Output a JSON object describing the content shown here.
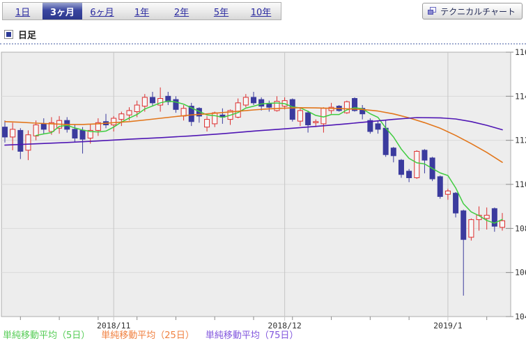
{
  "period_tabs": {
    "items": [
      {
        "name": "tab-1day",
        "label": "1日",
        "selected": false
      },
      {
        "name": "tab-3months",
        "label": "3ヶ月",
        "selected": true
      },
      {
        "name": "tab-6months",
        "label": "6ヶ月",
        "selected": false
      },
      {
        "name": "tab-1year",
        "label": "1年",
        "selected": false
      },
      {
        "name": "tab-2years",
        "label": "2年",
        "selected": false
      },
      {
        "name": "tab-5years",
        "label": "5年",
        "selected": false
      },
      {
        "name": "tab-10years",
        "label": "10年",
        "selected": false
      }
    ]
  },
  "technical_chart_button": {
    "label": "テクニカルチャート"
  },
  "chart_header": {
    "label": "日足"
  },
  "legend": {
    "items": [
      {
        "name": "legend-sma5",
        "label": "単純移動平均（5日）",
        "color": "#55cc55"
      },
      {
        "name": "legend-sma25",
        "label": "単純移動平均（25日）",
        "color": "#f08040"
      },
      {
        "name": "legend-sma75",
        "label": "単純移動平均（75日）",
        "color": "#8055dd"
      }
    ]
  },
  "chart_data": {
    "type": "candlestick",
    "title": "日足",
    "y_axis": {
      "min": 104,
      "max": 116,
      "tick_step": 2,
      "labels": [
        "116",
        "114",
        "112",
        "110",
        "108",
        "106",
        "104"
      ],
      "position": "right"
    },
    "x_axis": {
      "month_labels": [
        {
          "label": "2018/11",
          "index": 14
        },
        {
          "label": "2018/12",
          "index": 36
        },
        {
          "label": "2019/1",
          "index": 57
        }
      ],
      "minor_tick_indices": [
        2,
        7,
        12,
        17,
        22,
        27,
        32,
        37,
        42,
        47,
        52,
        62
      ]
    },
    "grid": true,
    "colors": {
      "up": "#dd2e2e",
      "up_fill": "#f7f7f7",
      "down": "#3b3b9e",
      "background": "#ededed",
      "grid_h": "#d9d9d9",
      "grid_v": "#c6c6c6",
      "border": "#adadad",
      "tick": "#8a8a8a",
      "axis_text": "#333333",
      "ma5": "#3fcc3f",
      "ma25": "#e2761b",
      "ma75": "#4f16b4"
    },
    "candles": [
      [
        112.6,
        112.9,
        111.9,
        112.15
      ],
      [
        112.15,
        112.8,
        111.55,
        112.5
      ],
      [
        112.45,
        112.55,
        111.15,
        111.5
      ],
      [
        111.55,
        112.45,
        111.1,
        112.25
      ],
      [
        112.2,
        112.9,
        112.0,
        112.7
      ],
      [
        112.75,
        113.0,
        112.3,
        112.5
      ],
      [
        112.4,
        113.05,
        112.25,
        112.8
      ],
      [
        112.55,
        113.1,
        112.3,
        112.9
      ],
      [
        112.9,
        113.05,
        112.35,
        112.5
      ],
      [
        112.5,
        112.7,
        111.9,
        112.1
      ],
      [
        112.45,
        112.6,
        111.4,
        112.05
      ],
      [
        112.1,
        112.75,
        111.85,
        112.45
      ],
      [
        112.45,
        113.0,
        112.2,
        112.8
      ],
      [
        112.85,
        113.2,
        112.55,
        112.7
      ],
      [
        112.7,
        113.1,
        112.4,
        113.0
      ],
      [
        112.95,
        113.3,
        112.65,
        113.2
      ],
      [
        113.15,
        113.5,
        112.9,
        113.35
      ],
      [
        113.3,
        113.8,
        113.05,
        113.6
      ],
      [
        113.55,
        114.1,
        113.3,
        113.95
      ],
      [
        113.95,
        114.2,
        113.55,
        113.7
      ],
      [
        113.6,
        114.4,
        113.3,
        113.9
      ],
      [
        114.0,
        114.2,
        113.6,
        113.75
      ],
      [
        113.85,
        114.0,
        113.25,
        113.4
      ],
      [
        113.1,
        113.6,
        112.9,
        113.45
      ],
      [
        113.55,
        113.7,
        112.65,
        112.85
      ],
      [
        113.45,
        113.5,
        112.8,
        113.1
      ],
      [
        112.6,
        113.1,
        112.4,
        112.95
      ],
      [
        112.75,
        113.3,
        112.6,
        113.25
      ],
      [
        113.15,
        113.45,
        112.75,
        113.05
      ],
      [
        112.95,
        113.4,
        112.7,
        113.35
      ],
      [
        113.05,
        113.9,
        113.0,
        113.7
      ],
      [
        113.6,
        114.1,
        113.5,
        113.95
      ],
      [
        113.95,
        114.2,
        113.6,
        113.7
      ],
      [
        113.85,
        113.95,
        113.35,
        113.55
      ],
      [
        113.65,
        113.8,
        113.3,
        113.5
      ],
      [
        113.35,
        114.0,
        113.3,
        113.77
      ],
      [
        113.55,
        113.95,
        113.4,
        113.8
      ],
      [
        113.85,
        113.9,
        112.85,
        112.95
      ],
      [
        112.87,
        113.45,
        112.65,
        113.35
      ],
      [
        113.25,
        113.35,
        112.35,
        112.7
      ],
      [
        112.8,
        112.95,
        112.6,
        112.85
      ],
      [
        112.75,
        113.5,
        112.35,
        113.45
      ],
      [
        113.35,
        113.7,
        113.2,
        113.5
      ],
      [
        113.55,
        113.6,
        113.3,
        113.35
      ],
      [
        113.25,
        113.8,
        113.2,
        113.75
      ],
      [
        113.9,
        113.95,
        113.3,
        113.35
      ],
      [
        113.45,
        113.6,
        112.95,
        113.2
      ],
      [
        112.9,
        113.0,
        112.3,
        112.4
      ],
      [
        112.75,
        112.9,
        112.3,
        112.5
      ],
      [
        112.55,
        112.9,
        111.25,
        111.35
      ],
      [
        111.65,
        111.7,
        111.0,
        111.3
      ],
      [
        111.1,
        111.15,
        110.3,
        110.45
      ],
      [
        110.6,
        110.7,
        110.1,
        110.3
      ],
      [
        110.3,
        111.55,
        110.25,
        111.5
      ],
      [
        111.55,
        111.6,
        110.5,
        111.1
      ],
      [
        111.2,
        111.25,
        110.15,
        110.25
      ],
      [
        110.35,
        110.4,
        109.35,
        109.45
      ],
      [
        109.55,
        109.8,
        109.3,
        109.7
      ],
      [
        109.6,
        109.65,
        108.5,
        108.7
      ],
      [
        108.8,
        108.85,
        104.95,
        107.5
      ],
      [
        107.6,
        108.45,
        107.45,
        108.4
      ],
      [
        108.4,
        109.0,
        107.9,
        108.6
      ],
      [
        108.45,
        108.95,
        107.95,
        108.6
      ],
      [
        108.9,
        108.95,
        107.85,
        108.1
      ],
      [
        108.05,
        108.7,
        107.9,
        108.35
      ]
    ],
    "overlays": [
      {
        "name": "単純移動平均（5日）",
        "type": "sma_of_closes",
        "window": 5,
        "color_key": "ma5"
      },
      {
        "name": "単純移動平均（25日）",
        "type": "line",
        "color_key": "ma25",
        "points": [
          [
            0,
            112.85
          ],
          [
            2,
            112.82
          ],
          [
            4,
            112.78
          ],
          [
            6,
            112.75
          ],
          [
            8,
            112.72
          ],
          [
            10,
            112.72
          ],
          [
            12,
            112.75
          ],
          [
            14,
            112.8
          ],
          [
            16,
            112.85
          ],
          [
            18,
            112.92
          ],
          [
            20,
            113.0
          ],
          [
            22,
            113.08
          ],
          [
            24,
            113.15
          ],
          [
            26,
            113.2
          ],
          [
            28,
            113.26
          ],
          [
            30,
            113.32
          ],
          [
            32,
            113.38
          ],
          [
            34,
            113.43
          ],
          [
            36,
            113.46
          ],
          [
            38,
            113.48
          ],
          [
            40,
            113.47
          ],
          [
            42,
            113.45
          ],
          [
            44,
            113.43
          ],
          [
            46,
            113.4
          ],
          [
            48,
            113.33
          ],
          [
            50,
            113.2
          ],
          [
            52,
            113.02
          ],
          [
            54,
            112.8
          ],
          [
            56,
            112.55
          ],
          [
            58,
            112.22
          ],
          [
            60,
            111.85
          ],
          [
            62,
            111.45
          ],
          [
            64,
            111.0
          ]
        ]
      },
      {
        "name": "単純移動平均（75日）",
        "type": "line",
        "color_key": "ma75",
        "points": [
          [
            0,
            111.78
          ],
          [
            4,
            111.84
          ],
          [
            8,
            111.9
          ],
          [
            12,
            111.97
          ],
          [
            16,
            112.05
          ],
          [
            20,
            112.12
          ],
          [
            24,
            112.2
          ],
          [
            28,
            112.3
          ],
          [
            32,
            112.42
          ],
          [
            36,
            112.52
          ],
          [
            40,
            112.63
          ],
          [
            44,
            112.75
          ],
          [
            47,
            112.85
          ],
          [
            50,
            112.95
          ],
          [
            53,
            113.03
          ],
          [
            56,
            113.02
          ],
          [
            58,
            112.97
          ],
          [
            60,
            112.85
          ],
          [
            62,
            112.68
          ],
          [
            64,
            112.48
          ]
        ]
      }
    ]
  }
}
